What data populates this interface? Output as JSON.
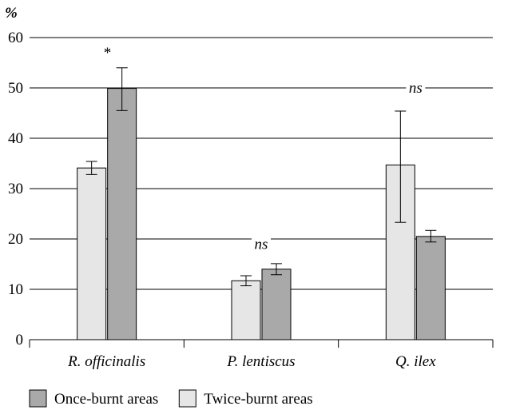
{
  "chart_data": {
    "type": "bar",
    "ylabel": "%",
    "ylim": [
      0,
      60
    ],
    "yticks": [
      "0",
      "10",
      "20",
      "30",
      "40",
      "50",
      "60"
    ],
    "grid": true,
    "categories": [
      "R. officinalis",
      "P. lentiscus",
      "Q. ilex"
    ],
    "series": [
      {
        "name": "Twice-burnt areas",
        "color": "#e6e6e6",
        "values": [
          34.1,
          11.7,
          34.7
        ],
        "error": [
          [
            32.8,
            35.4
          ],
          [
            10.7,
            12.7
          ],
          [
            23.3,
            45.4
          ]
        ]
      },
      {
        "name": "Once-burnt areas",
        "color": "#a9a9a9",
        "values": [
          49.9,
          14.0,
          20.5
        ],
        "error": [
          [
            45.5,
            54.0
          ],
          [
            12.9,
            15.1
          ],
          [
            19.4,
            21.7
          ]
        ]
      }
    ],
    "annotations": [
      {
        "category": "R. officinalis",
        "text": "*",
        "y": 57
      },
      {
        "category": "P. lentiscus",
        "text": "ns",
        "y": 19
      },
      {
        "category": "Q. ilex",
        "text": "ns",
        "y": 50
      }
    ],
    "legend": {
      "placement": "bottom-left",
      "items": [
        {
          "label": "Once-burnt areas",
          "color": "#a9a9a9"
        },
        {
          "label": "Twice-burnt areas",
          "color": "#e6e6e6"
        }
      ]
    }
  }
}
